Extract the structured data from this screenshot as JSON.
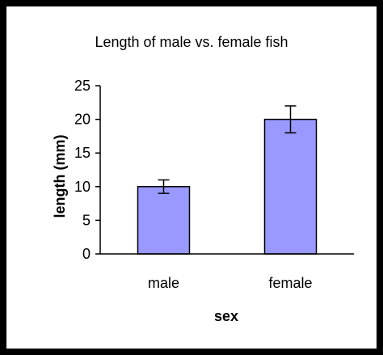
{
  "chart_data": {
    "type": "bar",
    "title": "Length of male vs. female fish",
    "xlabel": "sex",
    "ylabel": "length (mm)",
    "categories": [
      "male",
      "female"
    ],
    "values": [
      10,
      20
    ],
    "error": [
      1,
      2
    ],
    "ylim": [
      0,
      25
    ],
    "yticks": [
      0,
      5,
      10,
      15,
      20,
      25
    ],
    "bar_color": "#9999ff",
    "grid": false,
    "legend": "none"
  }
}
